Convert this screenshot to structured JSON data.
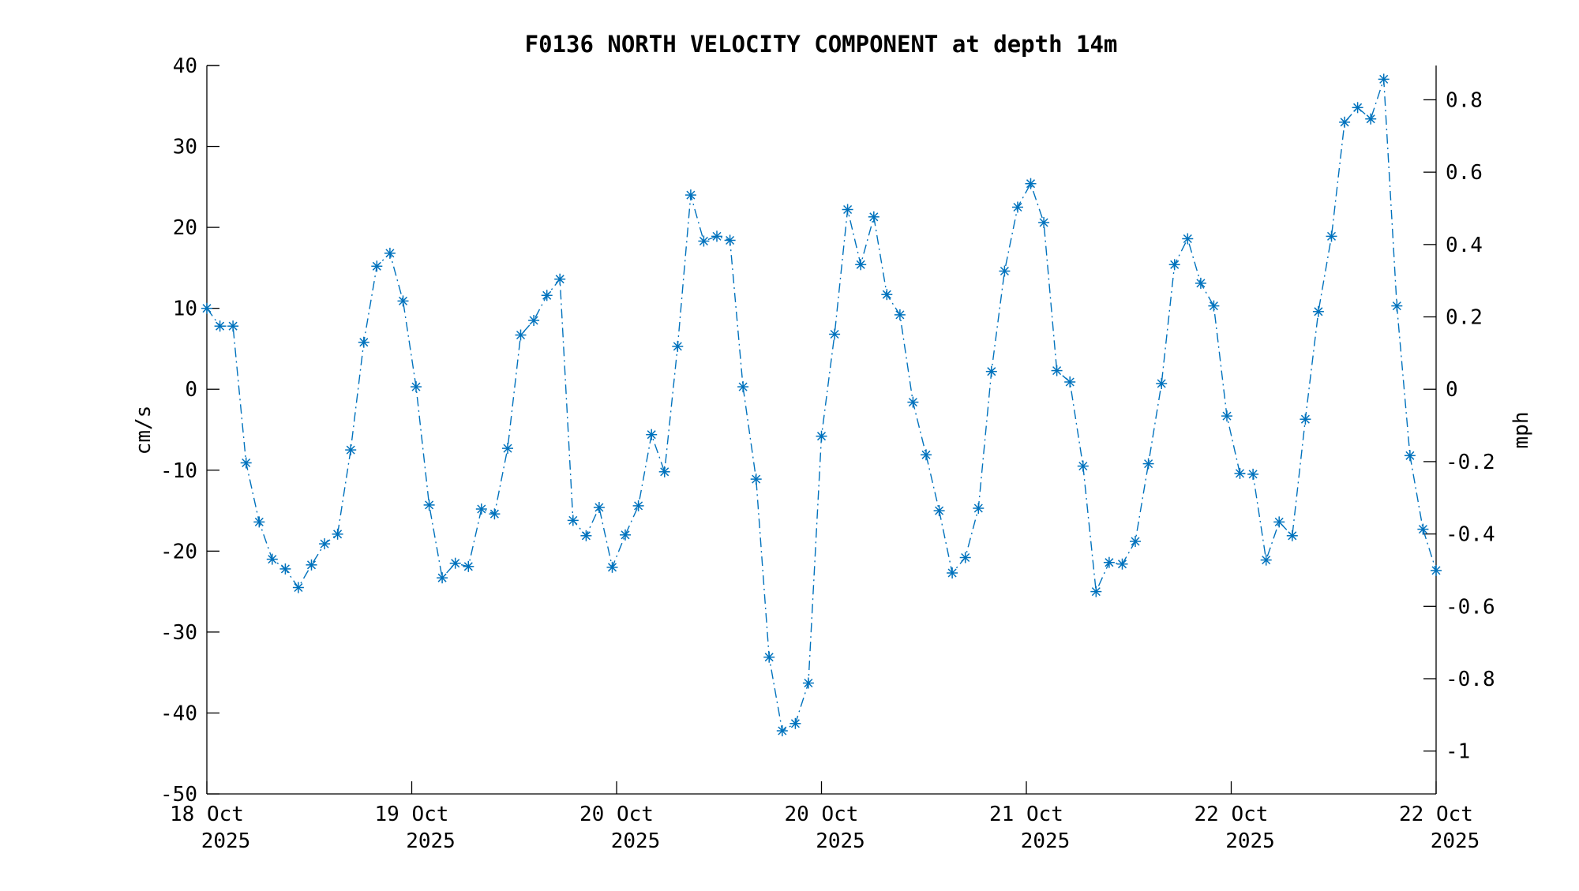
{
  "chart_data": {
    "type": "line",
    "title": "F0136 NORTH VELOCITY COMPONENT at depth 14m",
    "ylabel": "cm/s",
    "y2label": "mph",
    "ylim": [
      -50,
      40
    ],
    "yticks": [
      -50,
      -40,
      -30,
      -20,
      -10,
      0,
      10,
      20,
      30,
      40
    ],
    "y2ticks": [
      -1,
      -0.8,
      -0.6,
      -0.4,
      -0.2,
      0,
      0.2,
      0.4,
      0.6,
      0.8
    ],
    "y2_per_y": 0.0223694,
    "xticklabels": [
      [
        "18 Oct",
        "2025"
      ],
      [
        "19 Oct",
        "2025"
      ],
      [
        "20 Oct",
        "2025"
      ],
      [
        "20 Oct",
        "2025"
      ],
      [
        "21 Oct",
        "2025"
      ],
      [
        "22 Oct",
        "2025"
      ],
      [
        "22 Oct",
        "2025"
      ]
    ],
    "grid": false,
    "line_style": "dash-dot",
    "marker": "asterisk",
    "color": "#0072BD",
    "values": [
      10,
      7.8,
      7.8,
      -9.1,
      -16.4,
      -21,
      -22.2,
      -24.5,
      -21.7,
      -19.1,
      -17.9,
      -7.5,
      5.8,
      15.2,
      16.8,
      10.9,
      0.3,
      -14.3,
      -23.3,
      -21.5,
      -21.9,
      -14.8,
      -15.4,
      -7.3,
      6.7,
      8.5,
      11.6,
      13.6,
      -16.2,
      -18.1,
      -14.6,
      -22,
      -18,
      -14.4,
      -5.6,
      -10.2,
      5.3,
      24,
      18.3,
      18.9,
      18.4,
      0.3,
      -11.1,
      -33.1,
      -42.2,
      -41.3,
      -36.3,
      -5.8,
      6.8,
      22.2,
      15.4,
      21.3,
      11.7,
      9.2,
      -1.6,
      -8.1,
      -15,
      -22.7,
      -20.8,
      -14.7,
      2.2,
      14.6,
      22.5,
      25.4,
      20.6,
      2.3,
      0.9,
      -9.5,
      -25,
      -21.4,
      -21.6,
      -18.8,
      -9.2,
      0.7,
      15.4,
      18.6,
      13.1,
      10.3,
      -3.3,
      -10.4,
      -10.5,
      -21.1,
      -16.4,
      -18.1,
      -3.7,
      9.6,
      18.9,
      33,
      34.8,
      33.4,
      38.3,
      10.3,
      -8.2,
      -17.3,
      -22.4
    ]
  }
}
